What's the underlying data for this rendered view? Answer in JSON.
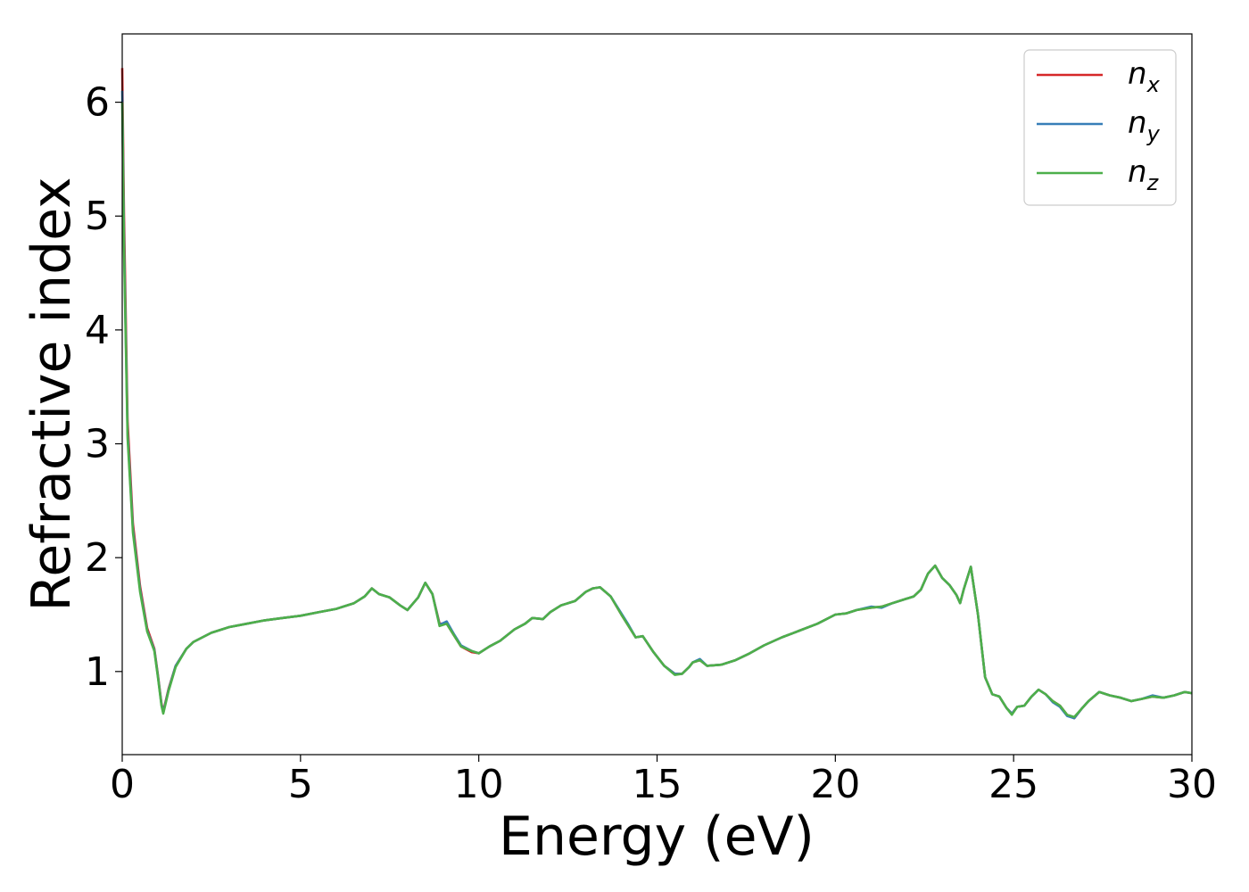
{
  "chart_data": {
    "type": "line",
    "xlabel": "Energy (eV)",
    "ylabel": "Refractive index",
    "xlim": [
      0,
      30
    ],
    "ylim": [
      0.27,
      6.6
    ],
    "xticks": [
      "0",
      "5",
      "10",
      "15",
      "20",
      "25",
      "30"
    ],
    "yticks": [
      "1",
      "2",
      "3",
      "4",
      "5",
      "6"
    ],
    "grid": false,
    "legend_position": "top-right",
    "series": [
      {
        "name": "n",
        "sub": "x",
        "color": "#d62728",
        "x": [
          0,
          0.05,
          0.15,
          0.3,
          0.5,
          0.7,
          0.9,
          1.0,
          1.1,
          1.15,
          1.3,
          1.5,
          1.8,
          2.0,
          2.5,
          3.0,
          3.5,
          4.0,
          4.5,
          5.0,
          5.5,
          6.0,
          6.5,
          6.8,
          7.0,
          7.2,
          7.5,
          7.8,
          8.0,
          8.3,
          8.5,
          8.7,
          8.9,
          9.1,
          9.3,
          9.5,
          9.8,
          10.0,
          10.3,
          10.6,
          11.0,
          11.3,
          11.5,
          11.8,
          12.0,
          12.3,
          12.7,
          13.0,
          13.2,
          13.4,
          13.7,
          14.0,
          14.2,
          14.4,
          14.6,
          14.9,
          15.2,
          15.5,
          15.7,
          15.9,
          16.0,
          16.2,
          16.4,
          16.8,
          17.2,
          17.6,
          18.0,
          18.5,
          19.0,
          19.5,
          20.0,
          20.3,
          20.6,
          21.0,
          21.3,
          21.6,
          21.9,
          22.2,
          22.4,
          22.6,
          22.8,
          23.0,
          23.2,
          23.4,
          23.5,
          23.6,
          23.8,
          24.0,
          24.2,
          24.4,
          24.6,
          24.8,
          24.95,
          25.1,
          25.3,
          25.5,
          25.7,
          25.9,
          26.1,
          26.3,
          26.5,
          26.7,
          26.9,
          27.1,
          27.4,
          27.7,
          28.0,
          28.3,
          28.6,
          28.9,
          29.2,
          29.5,
          29.8,
          30.0
        ],
        "y": [
          6.3,
          5.0,
          3.2,
          2.3,
          1.75,
          1.38,
          1.2,
          0.97,
          0.72,
          0.65,
          0.85,
          1.05,
          1.2,
          1.26,
          1.34,
          1.39,
          1.42,
          1.45,
          1.47,
          1.49,
          1.52,
          1.55,
          1.6,
          1.66,
          1.73,
          1.68,
          1.65,
          1.58,
          1.54,
          1.65,
          1.78,
          1.68,
          1.42,
          1.42,
          1.32,
          1.22,
          1.17,
          1.16,
          1.22,
          1.27,
          1.37,
          1.42,
          1.47,
          1.46,
          1.52,
          1.58,
          1.62,
          1.7,
          1.73,
          1.74,
          1.66,
          1.5,
          1.4,
          1.3,
          1.31,
          1.17,
          1.05,
          0.98,
          0.98,
          1.04,
          1.08,
          1.1,
          1.05,
          1.06,
          1.1,
          1.16,
          1.23,
          1.3,
          1.36,
          1.42,
          1.5,
          1.51,
          1.54,
          1.56,
          1.57,
          1.6,
          1.63,
          1.66,
          1.72,
          1.86,
          1.93,
          1.82,
          1.76,
          1.67,
          1.6,
          1.72,
          1.92,
          1.5,
          0.95,
          0.8,
          0.78,
          0.68,
          0.63,
          0.69,
          0.7,
          0.78,
          0.84,
          0.8,
          0.74,
          0.7,
          0.62,
          0.59,
          0.67,
          0.74,
          0.82,
          0.79,
          0.77,
          0.74,
          0.76,
          0.78,
          0.77,
          0.79,
          0.82,
          0.81
        ]
      },
      {
        "name": "n",
        "sub": "y",
        "color": "#377eb8",
        "x": [
          0,
          0.05,
          0.15,
          0.3,
          0.5,
          0.7,
          0.9,
          1.0,
          1.1,
          1.15,
          1.3,
          1.5,
          1.8,
          2.0,
          2.5,
          3.0,
          3.5,
          4.0,
          4.5,
          5.0,
          5.5,
          6.0,
          6.5,
          6.8,
          7.0,
          7.2,
          7.5,
          7.8,
          8.0,
          8.3,
          8.5,
          8.7,
          8.9,
          9.1,
          9.3,
          9.5,
          9.8,
          10.0,
          10.3,
          10.6,
          11.0,
          11.3,
          11.5,
          11.8,
          12.0,
          12.3,
          12.7,
          13.0,
          13.2,
          13.4,
          13.7,
          14.0,
          14.2,
          14.4,
          14.6,
          14.9,
          15.2,
          15.5,
          15.7,
          15.9,
          16.0,
          16.2,
          16.4,
          16.8,
          17.2,
          17.6,
          18.0,
          18.5,
          19.0,
          19.5,
          20.0,
          20.3,
          20.6,
          21.0,
          21.3,
          21.6,
          21.9,
          22.2,
          22.4,
          22.6,
          22.8,
          23.0,
          23.2,
          23.4,
          23.5,
          23.6,
          23.8,
          24.0,
          24.2,
          24.4,
          24.6,
          24.8,
          24.95,
          25.1,
          25.3,
          25.5,
          25.7,
          25.9,
          26.1,
          26.3,
          26.5,
          26.7,
          26.9,
          27.1,
          27.4,
          27.7,
          28.0,
          28.3,
          28.6,
          28.9,
          29.2,
          29.5,
          29.8,
          30.0
        ],
        "y": [
          6.1,
          4.8,
          3.1,
          2.25,
          1.72,
          1.36,
          1.19,
          0.96,
          0.71,
          0.64,
          0.84,
          1.05,
          1.2,
          1.26,
          1.34,
          1.39,
          1.42,
          1.45,
          1.47,
          1.49,
          1.52,
          1.55,
          1.6,
          1.66,
          1.73,
          1.68,
          1.65,
          1.58,
          1.54,
          1.65,
          1.78,
          1.68,
          1.41,
          1.44,
          1.33,
          1.23,
          1.18,
          1.16,
          1.22,
          1.27,
          1.37,
          1.42,
          1.47,
          1.46,
          1.52,
          1.58,
          1.62,
          1.7,
          1.73,
          1.74,
          1.66,
          1.51,
          1.41,
          1.3,
          1.31,
          1.17,
          1.05,
          0.98,
          0.98,
          1.04,
          1.08,
          1.11,
          1.05,
          1.06,
          1.1,
          1.16,
          1.23,
          1.3,
          1.36,
          1.42,
          1.5,
          1.51,
          1.54,
          1.57,
          1.56,
          1.6,
          1.63,
          1.66,
          1.72,
          1.86,
          1.93,
          1.82,
          1.76,
          1.67,
          1.6,
          1.72,
          1.92,
          1.5,
          0.95,
          0.8,
          0.78,
          0.68,
          0.63,
          0.69,
          0.7,
          0.78,
          0.84,
          0.8,
          0.73,
          0.69,
          0.61,
          0.59,
          0.67,
          0.74,
          0.82,
          0.79,
          0.77,
          0.74,
          0.76,
          0.79,
          0.77,
          0.79,
          0.82,
          0.81
        ]
      },
      {
        "name": "n",
        "sub": "z",
        "color": "#4daf4a",
        "x": [
          0,
          0.05,
          0.15,
          0.3,
          0.5,
          0.7,
          0.9,
          1.0,
          1.1,
          1.15,
          1.3,
          1.5,
          1.8,
          2.0,
          2.5,
          3.0,
          3.5,
          4.0,
          4.5,
          5.0,
          5.5,
          6.0,
          6.5,
          6.8,
          7.0,
          7.2,
          7.5,
          7.8,
          8.0,
          8.3,
          8.5,
          8.7,
          8.9,
          9.1,
          9.3,
          9.5,
          9.8,
          10.0,
          10.3,
          10.6,
          11.0,
          11.3,
          11.5,
          11.8,
          12.0,
          12.3,
          12.7,
          13.0,
          13.2,
          13.4,
          13.7,
          14.0,
          14.2,
          14.4,
          14.6,
          14.9,
          15.2,
          15.5,
          15.7,
          15.9,
          16.0,
          16.2,
          16.4,
          16.8,
          17.2,
          17.6,
          18.0,
          18.5,
          19.0,
          19.5,
          20.0,
          20.3,
          20.6,
          21.0,
          21.3,
          21.6,
          21.9,
          22.2,
          22.4,
          22.6,
          22.8,
          23.0,
          23.2,
          23.4,
          23.5,
          23.6,
          23.8,
          24.0,
          24.2,
          24.4,
          24.6,
          24.8,
          24.95,
          25.1,
          25.3,
          25.5,
          25.7,
          25.9,
          26.1,
          26.3,
          26.5,
          26.7,
          26.9,
          27.1,
          27.4,
          27.7,
          28.0,
          28.3,
          28.6,
          28.9,
          29.2,
          29.5,
          29.8,
          30.0
        ],
        "y": [
          6.0,
          4.7,
          3.05,
          2.22,
          1.7,
          1.35,
          1.18,
          0.95,
          0.7,
          0.63,
          0.83,
          1.04,
          1.2,
          1.26,
          1.34,
          1.39,
          1.42,
          1.45,
          1.47,
          1.49,
          1.52,
          1.55,
          1.6,
          1.66,
          1.73,
          1.68,
          1.65,
          1.58,
          1.54,
          1.65,
          1.78,
          1.68,
          1.4,
          1.42,
          1.32,
          1.22,
          1.18,
          1.16,
          1.22,
          1.27,
          1.37,
          1.42,
          1.47,
          1.46,
          1.52,
          1.58,
          1.62,
          1.7,
          1.73,
          1.74,
          1.66,
          1.5,
          1.4,
          1.3,
          1.31,
          1.17,
          1.05,
          0.97,
          0.98,
          1.04,
          1.08,
          1.1,
          1.05,
          1.06,
          1.1,
          1.16,
          1.23,
          1.3,
          1.36,
          1.42,
          1.5,
          1.51,
          1.54,
          1.56,
          1.57,
          1.6,
          1.63,
          1.66,
          1.72,
          1.86,
          1.93,
          1.82,
          1.76,
          1.67,
          1.6,
          1.72,
          1.92,
          1.5,
          0.95,
          0.8,
          0.78,
          0.68,
          0.62,
          0.69,
          0.7,
          0.78,
          0.84,
          0.8,
          0.74,
          0.7,
          0.62,
          0.6,
          0.67,
          0.74,
          0.82,
          0.79,
          0.77,
          0.74,
          0.76,
          0.78,
          0.77,
          0.79,
          0.82,
          0.81
        ]
      }
    ]
  }
}
